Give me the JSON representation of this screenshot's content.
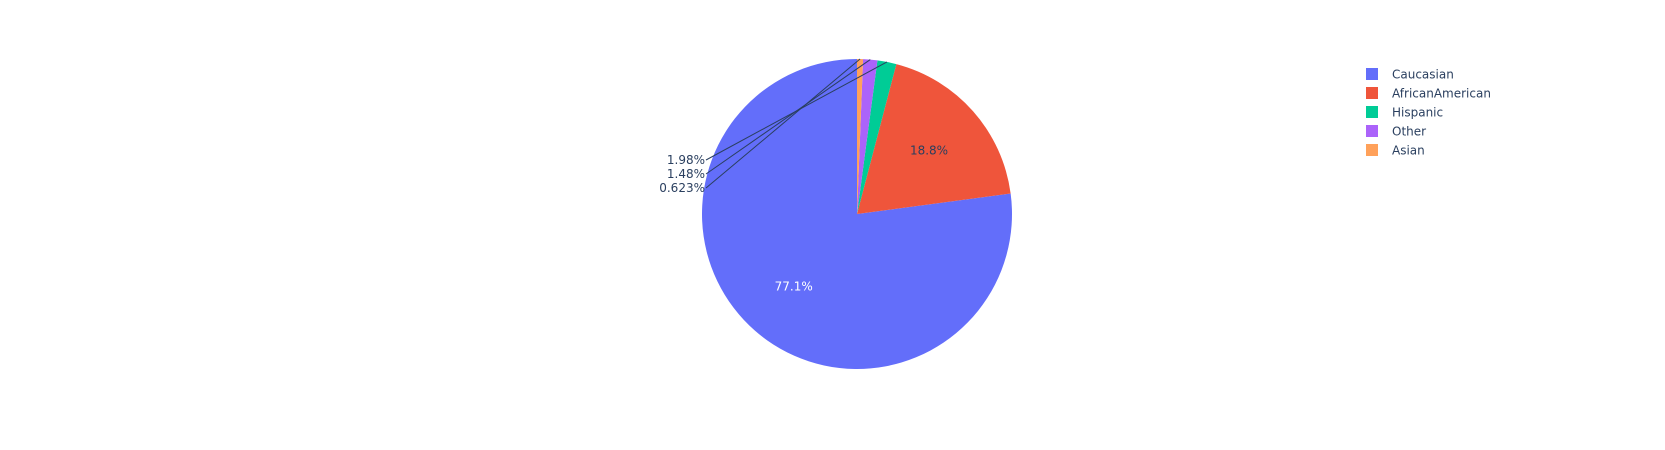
{
  "chart_data": {
    "type": "pie",
    "title": "",
    "slices": [
      {
        "label": "Caucasian",
        "value": 77.1,
        "display": "77.1%",
        "color": "#636efa",
        "label_position": "inside",
        "text_color": "#ffffff"
      },
      {
        "label": "AfricanAmerican",
        "value": 18.8,
        "display": "18.8%",
        "color": "#ef553b",
        "label_position": "inside",
        "text_color": "#2a3f5f"
      },
      {
        "label": "Hispanic",
        "value": 1.98,
        "display": "1.98%",
        "color": "#00cc96",
        "label_position": "outside",
        "text_color": "#2a3f5f"
      },
      {
        "label": "Other",
        "value": 1.48,
        "display": "1.48%",
        "color": "#ab63fa",
        "label_position": "outside",
        "text_color": "#2a3f5f"
      },
      {
        "label": "Asian",
        "value": 0.623,
        "display": "0.623%",
        "color": "#ffa15a",
        "label_position": "outside",
        "text_color": "#2a3f5f"
      }
    ],
    "direction": "counterclockwise",
    "start_angle": "top",
    "legend_placement": "top-right"
  }
}
